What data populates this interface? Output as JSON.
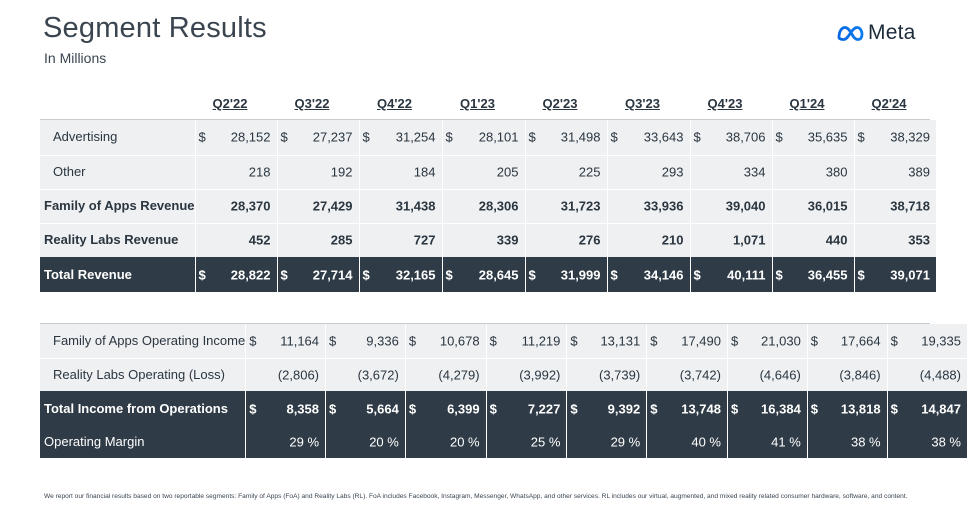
{
  "header": {
    "title": "Segment Results",
    "subtitle": "In Millions",
    "logo_text": "Meta"
  },
  "quarters": [
    "Q2'22",
    "Q3'22",
    "Q4'22",
    "Q1'23",
    "Q2'23",
    "Q3'23",
    "Q4'23",
    "Q1'24",
    "Q2'24"
  ],
  "revenue_table": [
    {
      "label": "Advertising",
      "indent": true,
      "bold": false,
      "dark": false,
      "currency": true,
      "values": [
        "28,152",
        "27,237",
        "31,254",
        "28,101",
        "31,498",
        "33,643",
        "38,706",
        "35,635",
        "38,329"
      ]
    },
    {
      "label": "Other",
      "indent": true,
      "bold": false,
      "dark": false,
      "currency": false,
      "values": [
        "218",
        "192",
        "184",
        "205",
        "225",
        "293",
        "334",
        "380",
        "389"
      ]
    },
    {
      "label": "Family of Apps Revenue",
      "indent": false,
      "bold": true,
      "dark": false,
      "currency": false,
      "values": [
        "28,370",
        "27,429",
        "31,438",
        "28,306",
        "31,723",
        "33,936",
        "39,040",
        "36,015",
        "38,718"
      ]
    },
    {
      "label": "Reality Labs Revenue",
      "indent": false,
      "bold": true,
      "dark": false,
      "currency": false,
      "values": [
        "452",
        "285",
        "727",
        "339",
        "276",
        "210",
        "1,071",
        "440",
        "353"
      ]
    },
    {
      "label": "Total Revenue",
      "indent": false,
      "bold": true,
      "dark": true,
      "currency": true,
      "values": [
        "28,822",
        "27,714",
        "32,165",
        "28,645",
        "31,999",
        "34,146",
        "40,111",
        "36,455",
        "39,071"
      ]
    }
  ],
  "income_table": [
    {
      "label": "Family of Apps Operating Income",
      "indent": true,
      "bold": false,
      "dark": false,
      "currency": true,
      "values": [
        "11,164",
        "9,336",
        "10,678",
        "11,219",
        "13,131",
        "17,490",
        "21,030",
        "17,664",
        "19,335"
      ]
    },
    {
      "label": "Reality Labs Operating (Loss)",
      "indent": true,
      "bold": false,
      "dark": false,
      "currency": false,
      "values": [
        "(2,806)",
        "(3,672)",
        "(4,279)",
        "(3,992)",
        "(3,739)",
        "(3,742)",
        "(4,646)",
        "(3,846)",
        "(4,488)"
      ]
    },
    {
      "label": "Total Income from Operations",
      "indent": false,
      "bold": true,
      "dark": true,
      "currency": true,
      "values": [
        "8,358",
        "5,664",
        "6,399",
        "7,227",
        "9,392",
        "13,748",
        "16,384",
        "13,818",
        "14,847"
      ]
    },
    {
      "label": "Operating Margin",
      "indent": false,
      "bold": false,
      "dark": true,
      "currency": false,
      "values": [
        "29 %",
        "20 %",
        "20 %",
        "25 %",
        "29 %",
        "40 %",
        "41 %",
        "38 %",
        "38 %"
      ]
    }
  ],
  "currency_symbol": "$",
  "footnote": "We report our financial results based on two reportable segments: Family of Apps (FoA) and Reality Labs (RL). FoA includes Facebook, Instagram, Messenger, WhatsApp, and other services. RL includes our virtual, augmented, and mixed reality related consumer hardware, software, and content.",
  "colors": {
    "dark_row": "#2f3b46",
    "light_row": "#eef0f2",
    "logo_blue": "#0a66e4"
  }
}
